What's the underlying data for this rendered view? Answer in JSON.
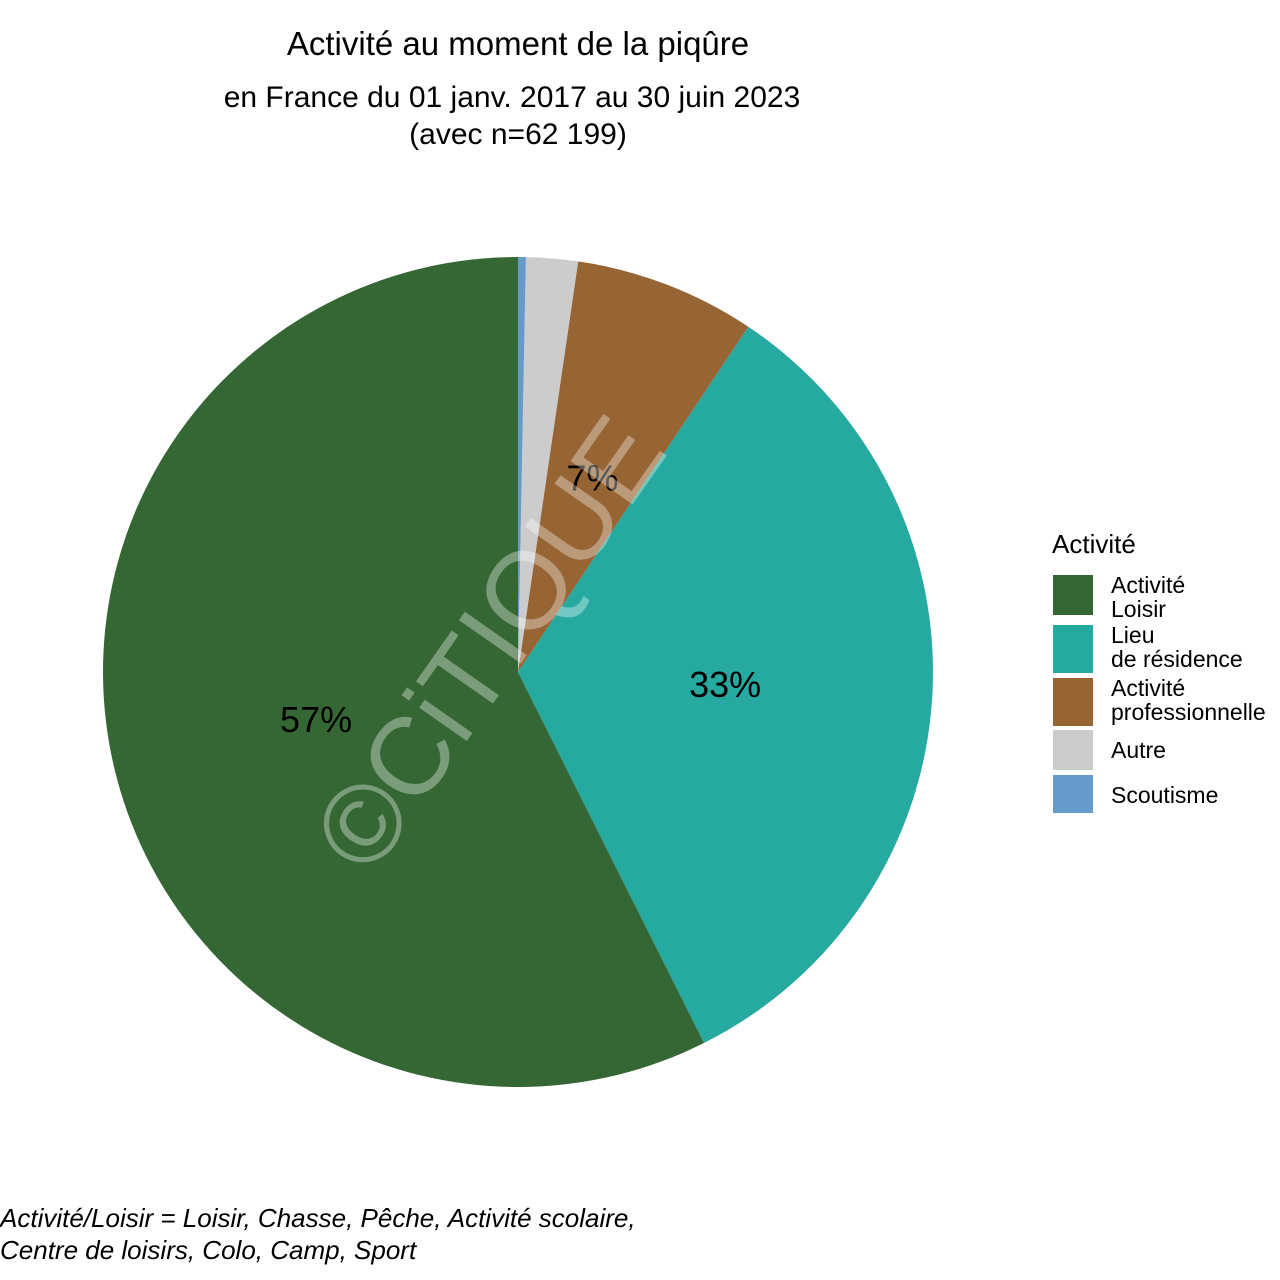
{
  "chart_data": {
    "type": "pie",
    "title": "Activité au moment de la piqûre",
    "subtitle": [
      "en France du 01 janv. 2017 au 30 juin 2023",
      "(avec n=62 199)"
    ],
    "legend_title": "Activité",
    "legend_position": "right",
    "categories": [
      "Activité\nLoisir",
      "Lieu\nde résidence",
      "Activité\nprofessionnelle",
      "Autre",
      "Scoutisme"
    ],
    "values": [
      57,
      33,
      7,
      2,
      0.3
    ],
    "value_labels": [
      "57%",
      "33%",
      "7%",
      null,
      null
    ],
    "colors": [
      "#356734",
      "#26a9a0",
      "#976534",
      "#cccccc",
      "#6699cc"
    ],
    "watermark": "©CiTIQUE",
    "caption": [
      "Activité/Loisir = Loisir, Chasse, Pêche, Activité scolaire,",
      "Centre de loisirs, Colo, Camp, Sport"
    ]
  }
}
